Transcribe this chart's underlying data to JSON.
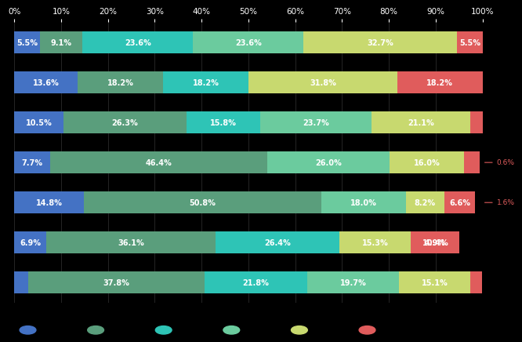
{
  "background_color": "#000000",
  "bar_area_bg": "#111111",
  "colors": [
    "#4472c4",
    "#5a9e7c",
    "#2ec4b6",
    "#6bcb9e",
    "#c8d96f",
    "#e05c5c"
  ],
  "rows": [
    [
      5.5,
      9.1,
      23.6,
      23.6,
      32.7,
      5.5
    ],
    [
      13.6,
      18.2,
      18.2,
      0.0,
      31.8,
      18.2
    ],
    [
      10.5,
      26.3,
      15.8,
      23.7,
      21.1,
      2.6
    ],
    [
      7.7,
      46.4,
      0.0,
      26.0,
      16.0,
      3.3
    ],
    [
      14.8,
      50.8,
      0.0,
      18.0,
      8.2,
      6.6
    ],
    [
      6.9,
      36.1,
      26.4,
      0.0,
      15.3,
      10.4
    ],
    [
      2.9,
      37.8,
      21.8,
      19.7,
      15.1,
      2.5
    ]
  ],
  "extra_annotations": [
    {
      "row": 2,
      "value": "0.6%",
      "color": "#e05c5c"
    },
    {
      "row": 3,
      "value": "1.6%",
      "color": "#e05c5c"
    },
    {
      "row": 5,
      "value": "4.9%",
      "color": "#e05c5c"
    }
  ],
  "row_labels": [
    "",
    "",
    "",
    "",
    "",
    "",
    ""
  ],
  "xlim": [
    0,
    100
  ],
  "xticks": [
    0,
    10,
    20,
    30,
    40,
    50,
    60,
    70,
    80,
    90,
    100
  ],
  "xtick_labels": [
    "0%",
    "10%",
    "20%",
    "30%",
    "40%",
    "50%",
    "60%",
    "70%",
    "80%",
    "90%",
    "100%"
  ]
}
